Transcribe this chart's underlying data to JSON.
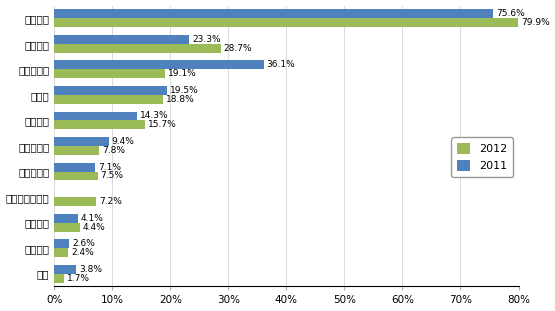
{
  "categories": [
    "产品质量",
    "供货能力",
    "产品性价比",
    "交货期",
    "技术支持",
    "技术领先性",
    "品牌知名度",
    "小批量供应服务",
    "产品组合",
    "付款条件",
    "信誉"
  ],
  "values_2012": [
    79.9,
    28.7,
    19.1,
    18.8,
    15.7,
    7.8,
    7.5,
    7.2,
    4.4,
    2.4,
    1.7
  ],
  "values_2011": [
    75.6,
    23.3,
    36.1,
    19.5,
    14.3,
    9.4,
    7.1,
    0,
    4.1,
    2.6,
    3.8
  ],
  "labels_2012": [
    "79.9%",
    "28.7%",
    "19.1%",
    "18.8%",
    "15.7%",
    "7.8%",
    "7.5%",
    "7.2%",
    "4.4%",
    "2.4%",
    "1.7%"
  ],
  "labels_2011": [
    "75.6%",
    "23.3%",
    "36.1%",
    "19.5%",
    "14.3%",
    "9.4%",
    "7.1%",
    "",
    "4.1%",
    "2.6%",
    "3.8%"
  ],
  "color_2012": "#9BBB59",
  "color_2011": "#4F81BD",
  "xlim": [
    0,
    80
  ],
  "xticks": [
    0,
    10,
    20,
    30,
    40,
    50,
    60,
    70,
    80
  ],
  "xtick_labels": [
    "0%",
    "10%",
    "20%",
    "30%",
    "40%",
    "50%",
    "60%",
    "70%",
    "80%"
  ],
  "legend_labels": [
    "2012",
    "2011"
  ],
  "bar_height": 0.35,
  "fontsize_labels": 6.5,
  "fontsize_ticks": 7.5,
  "background_color": "#FFFFFF"
}
